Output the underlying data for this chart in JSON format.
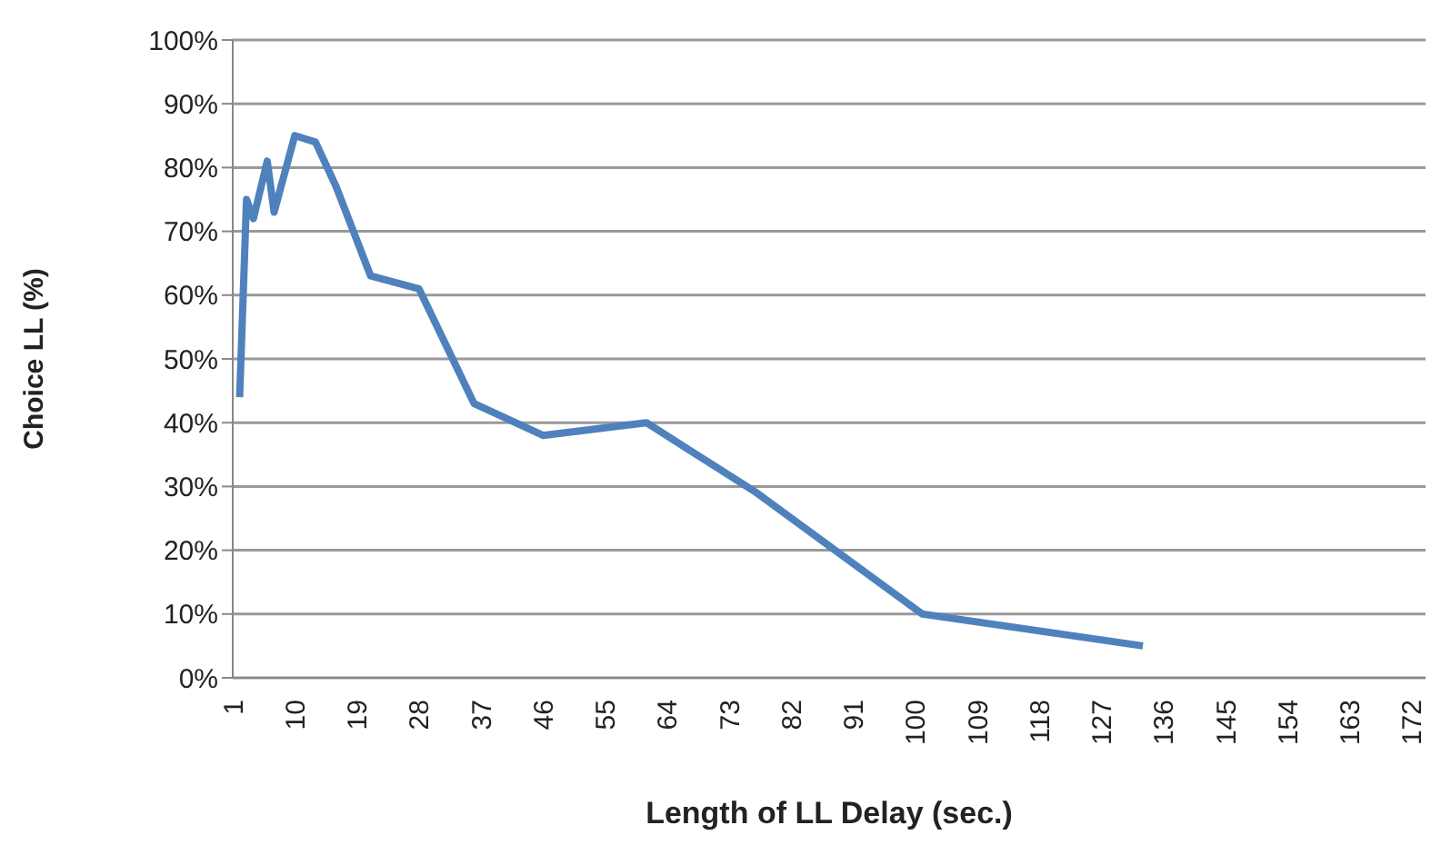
{
  "chart_data": {
    "type": "line",
    "xlabel": "Length of LL Delay  (sec.)",
    "ylabel": "Choice LL (%)",
    "x": [
      2,
      3,
      4,
      6,
      7,
      10,
      13,
      16,
      21,
      28,
      36,
      46,
      61,
      77,
      101,
      133
    ],
    "series": [
      {
        "color": "#4f81bd",
        "values": [
          44,
          75,
          72,
          81,
          73,
          85,
          84,
          77,
          63,
          61,
          43,
          38,
          40,
          29,
          10,
          5
        ]
      }
    ],
    "xlim": [
      1,
      174
    ],
    "xticks": [
      1,
      10,
      19,
      28,
      37,
      46,
      55,
      64,
      73,
      82,
      91,
      100,
      109,
      118,
      127,
      136,
      145,
      154,
      163,
      172
    ],
    "ylim": [
      0,
      100
    ],
    "yticks": [
      {
        "value": 0,
        "label": "0%"
      },
      {
        "value": 10,
        "label": "10%"
      },
      {
        "value": 20,
        "label": "20%"
      },
      {
        "value": 30,
        "label": "30%"
      },
      {
        "value": 40,
        "label": "40%"
      },
      {
        "value": 50,
        "label": "50%"
      },
      {
        "value": 60,
        "label": "60%"
      },
      {
        "value": 70,
        "label": "70%"
      },
      {
        "value": 80,
        "label": "80%"
      },
      {
        "value": 90,
        "label": "90%"
      },
      {
        "value": 100,
        "label": "100%"
      }
    ],
    "grid": "y",
    "marker": "none",
    "line_style": "solid",
    "legend": false
  }
}
